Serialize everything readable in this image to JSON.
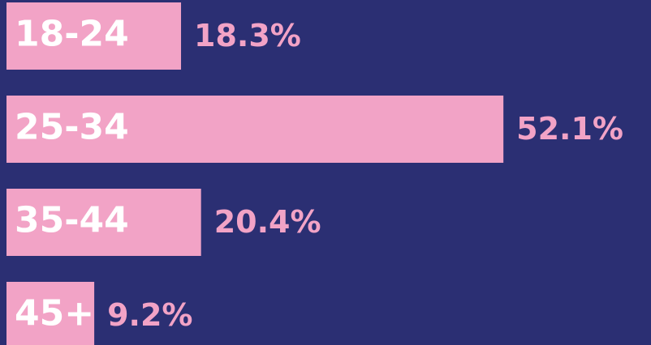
{
  "chart_data": {
    "type": "hbar",
    "categories": [
      "18-24",
      "25-34",
      "35-44",
      "45+"
    ],
    "values": [
      18.3,
      52.1,
      20.4,
      9.2
    ],
    "value_labels": [
      "18.3%",
      "52.1%",
      "20.4%",
      "9.2%"
    ],
    "color": "#f2a3c6"
  }
}
